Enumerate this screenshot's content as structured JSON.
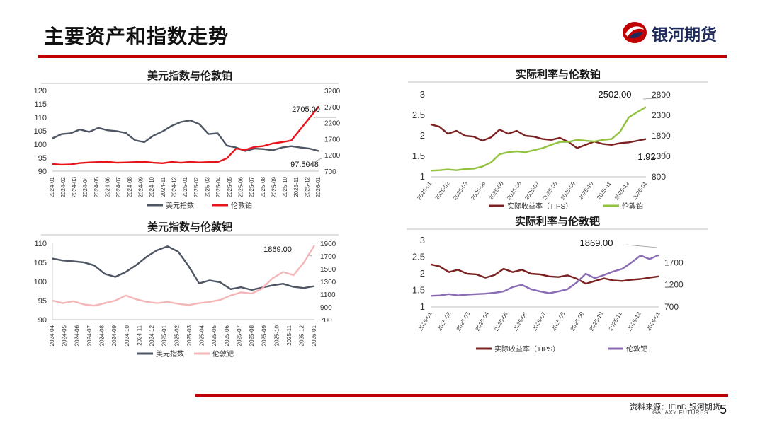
{
  "page": {
    "title": "主要资产和指数走势",
    "logo_text": "银河期货",
    "logo_icon": "galaxy-futures-logo-icon",
    "source": "资料来源：iFinD 银河期货",
    "source_sub": "GALAXY FUTURES",
    "page_number": "5",
    "colors": {
      "rule": "#c00000",
      "brand_blue": "#1e2b5a"
    }
  },
  "chart_data": [
    {
      "type": "line",
      "title": "美元指数与伦敦铂",
      "x_ticks": [
        "2024-01",
        "2024-02",
        "2024-03",
        "2024-04",
        "2024-05",
        "2024-06",
        "2024-07",
        "2024-08",
        "2024-09",
        "2024-10",
        "2024-11",
        "2024-12",
        "2025-01",
        "2025-02",
        "2025-03",
        "2025-04",
        "2025-05",
        "2025-06",
        "2025-07",
        "2025-08",
        "2025-09",
        "2025-10",
        "2025-11",
        "2025-12",
        "2026-01"
      ],
      "y_left": {
        "range": [
          90,
          120
        ],
        "ticks": [
          "90",
          "95",
          "100",
          "105",
          "110",
          "115",
          "120"
        ]
      },
      "y_right": {
        "range": [
          700,
          3200
        ],
        "ticks": [
          "700",
          "1200",
          "1700",
          "2200",
          "2700",
          "3200"
        ]
      },
      "series": [
        {
          "name": "美元指数",
          "axis": "left",
          "color": "#4e5563",
          "values": [
            102.2,
            103.8,
            104.1,
            105.5,
            104.6,
            106.1,
            105.2,
            104.9,
            104.2,
            101.5,
            100.8,
            103.2,
            104.8,
            106.9,
            108.3,
            108.9,
            107.5,
            103.8,
            104.1,
            99.5,
            98.8,
            97.5,
            98.4,
            98.2,
            97.8,
            98.8,
            99.3,
            98.8,
            98.4,
            97.5048
          ]
        },
        {
          "name": "伦敦铂",
          "axis": "right",
          "color": "#e8141c",
          "values": [
            920,
            900,
            910,
            950,
            970,
            980,
            990,
            960,
            970,
            980,
            990,
            960,
            945,
            985,
            960,
            985,
            970,
            980,
            980,
            1100,
            1400,
            1360,
            1450,
            1480,
            1560,
            1600,
            1650,
            2000,
            2350,
            2705.0
          ]
        }
      ],
      "annotations": [
        "2705.00",
        "97.5048"
      ]
    },
    {
      "type": "line",
      "title": "实际利率与伦敦铂",
      "x_ticks": [
        "2025-01",
        "2025-02",
        "2025-03",
        "2025-04",
        "2025-05",
        "2025-06",
        "2025-07",
        "2025-08",
        "2025-09",
        "2025-10",
        "2025-11",
        "2025-12",
        "2026-01"
      ],
      "y_left": {
        "range": [
          1,
          3
        ],
        "ticks": [
          "1",
          "1.5",
          "2",
          "2.5",
          "3"
        ]
      },
      "y_right": {
        "range": [
          800,
          2800
        ],
        "ticks": [
          "800",
          "1300",
          "1800",
          "2300",
          "2800"
        ]
      },
      "series": [
        {
          "name": "实际收益率（TIPS）",
          "axis": "left",
          "color": "#7b2121",
          "values": [
            2.28,
            2.22,
            2.05,
            2.12,
            2.0,
            1.98,
            1.88,
            1.96,
            2.15,
            2.05,
            2.12,
            2.0,
            1.98,
            1.92,
            1.9,
            1.95,
            1.85,
            1.7,
            1.78,
            1.86,
            1.8,
            1.78,
            1.82,
            1.84,
            1.88,
            1.92
          ]
        },
        {
          "name": "伦敦铂",
          "axis": "right",
          "color": "#92c23e",
          "values": [
            950,
            960,
            980,
            960,
            990,
            1000,
            1050,
            1150,
            1350,
            1400,
            1420,
            1400,
            1450,
            1500,
            1580,
            1650,
            1650,
            1700,
            1680,
            1660,
            1700,
            1720,
            1900,
            2250,
            2380,
            2502.0
          ]
        }
      ],
      "annotations": [
        "2502.00",
        "1.92"
      ]
    },
    {
      "type": "line",
      "title": "美元指数与伦敦钯",
      "x_ticks": [
        "2024-04",
        "2024-05",
        "2024-06",
        "2024-07",
        "2024-08",
        "2024-09",
        "2024-10",
        "2024-11",
        "2024-12",
        "2025-01",
        "2025-02",
        "2025-03",
        "2025-04",
        "2025-05",
        "2025-06",
        "2025-07",
        "2025-08",
        "2025-09",
        "2025-10",
        "2025-11",
        "2025-12",
        "2026-01"
      ],
      "y_left": {
        "range": [
          90,
          110
        ],
        "ticks": [
          "90",
          "95",
          "100",
          "105",
          "110"
        ]
      },
      "y_right": {
        "range": [
          700,
          1900
        ],
        "ticks": [
          "700",
          "900",
          "1100",
          "1300",
          "1500",
          "1700",
          "1900"
        ]
      },
      "series": [
        {
          "name": "美元指数",
          "axis": "left",
          "color": "#4e5563",
          "values": [
            106.0,
            105.5,
            105.3,
            105.0,
            104.2,
            102.0,
            101.2,
            102.5,
            104.3,
            106.5,
            108.2,
            109.2,
            107.8,
            104.0,
            99.5,
            100.3,
            99.8,
            98.0,
            98.5,
            97.8,
            98.4,
            99.0,
            99.4,
            98.6,
            98.3,
            98.8
          ]
        },
        {
          "name": "伦敦钯",
          "axis": "right",
          "color": "#f4b6b6",
          "values": [
            1000,
            960,
            990,
            940,
            920,
            960,
            1000,
            1080,
            1020,
            980,
            960,
            980,
            950,
            930,
            960,
            980,
            1010,
            1080,
            1130,
            1110,
            1190,
            1350,
            1450,
            1400,
            1600,
            1869.0
          ]
        }
      ],
      "annotations": [
        "1869.00"
      ]
    },
    {
      "type": "line",
      "title": "实际利率与伦敦钯",
      "x_ticks": [
        "2025-01",
        "2025-02",
        "2025-03",
        "2025-04",
        "2025-05",
        "2025-06",
        "2025-07",
        "2025-08",
        "2025-09",
        "2025-10",
        "2025-11",
        "2025-12",
        "2026-01"
      ],
      "y_left": {
        "range": [
          1,
          3
        ],
        "ticks": [
          "1",
          "1.5",
          "2",
          "2.5",
          "3"
        ]
      },
      "y_right": {
        "range": [
          700,
          2200
        ],
        "ticks": [
          "700",
          "1200",
          "1700"
        ]
      },
      "series": [
        {
          "name": "实际收益率（TIPS）",
          "axis": "left",
          "color": "#7b2121",
          "values": [
            2.28,
            2.22,
            2.05,
            2.12,
            2.0,
            1.98,
            1.88,
            1.96,
            2.15,
            2.05,
            2.12,
            2.0,
            1.98,
            1.92,
            1.9,
            1.95,
            1.85,
            1.7,
            1.78,
            1.86,
            1.8,
            1.78,
            1.82,
            1.84,
            1.88,
            1.92
          ]
        },
        {
          "name": "伦敦钯",
          "axis": "right",
          "color": "#8a6bb4",
          "values": [
            950,
            960,
            990,
            960,
            980,
            990,
            1000,
            1020,
            1050,
            1150,
            1200,
            1100,
            1050,
            1010,
            1050,
            1100,
            1250,
            1450,
            1350,
            1420,
            1500,
            1560,
            1700,
            1860,
            1780,
            1869.0
          ]
        }
      ],
      "annotations": [
        "1869.00"
      ]
    }
  ]
}
